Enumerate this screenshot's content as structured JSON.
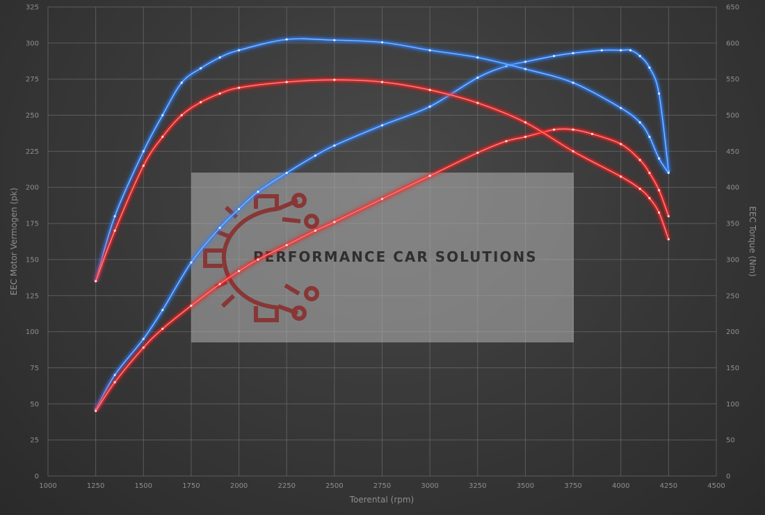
{
  "chart_data": {
    "type": "line",
    "xlabel": "Toerental (rpm)",
    "ylabel_left": "EEC Motor Vermogen (pk)",
    "ylabel_right": "EEC Torque (Nm)",
    "xlim": [
      1000,
      4500
    ],
    "ylim_left": [
      0,
      325
    ],
    "ylim_right": [
      0,
      650
    ],
    "x_ticks": [
      1000,
      1250,
      1500,
      1750,
      2000,
      2250,
      2500,
      2750,
      3000,
      3250,
      3500,
      3750,
      4000,
      4250,
      4500
    ],
    "y_left_ticks": [
      0,
      25,
      50,
      75,
      100,
      125,
      150,
      175,
      200,
      225,
      250,
      275,
      300,
      325
    ],
    "y_right_ticks": [
      0,
      50,
      100,
      150,
      200,
      250,
      300,
      350,
      400,
      450,
      500,
      550,
      600,
      650
    ],
    "grid": true,
    "series": [
      {
        "axis": "left",
        "color": "#3d8fff",
        "glow": "#2f7dff",
        "x": [
          1250,
          1350,
          1500,
          1600,
          1750,
          1900,
          2000,
          2100,
          2250,
          2400,
          2500,
          2750,
          3000,
          3250,
          3400,
          3500,
          3650,
          3750,
          3900,
          4000,
          4050,
          4100,
          4150,
          4200,
          4250
        ],
        "values": [
          46,
          70,
          95,
          115,
          148,
          172,
          185,
          197,
          210,
          222,
          229,
          243,
          256,
          276,
          284,
          287,
          291,
          293,
          295,
          295,
          295,
          291,
          283,
          265,
          211
        ]
      },
      {
        "axis": "left",
        "color": "#ff3b3b",
        "glow": "#ff1a1a",
        "x": [
          1250,
          1350,
          1500,
          1600,
          1750,
          1900,
          2000,
          2100,
          2250,
          2400,
          2500,
          2750,
          3000,
          3250,
          3400,
          3500,
          3650,
          3750,
          3850,
          4000,
          4100,
          4150,
          4200,
          4250
        ],
        "values": [
          45,
          65,
          89,
          102,
          118,
          133,
          142,
          150,
          160,
          170,
          176,
          192,
          208,
          224,
          232,
          235,
          240,
          240,
          237,
          230,
          219,
          210,
          198,
          180
        ]
      },
      {
        "axis": "right",
        "color": "#3d8fff",
        "glow": "#2f7dff",
        "x": [
          1250,
          1350,
          1500,
          1600,
          1700,
          1800,
          1900,
          2000,
          2250,
          2500,
          2750,
          3000,
          3250,
          3500,
          3750,
          4000,
          4100,
          4150,
          4200,
          4250
        ],
        "values": [
          270,
          360,
          450,
          500,
          545,
          565,
          580,
          590,
          605,
          604,
          601,
          590,
          580,
          564,
          545,
          510,
          490,
          470,
          440,
          420
        ]
      },
      {
        "axis": "right",
        "color": "#ff3b3b",
        "glow": "#ff1a1a",
        "x": [
          1250,
          1350,
          1500,
          1600,
          1700,
          1800,
          1900,
          2000,
          2250,
          2500,
          2750,
          3000,
          3250,
          3500,
          3750,
          4000,
          4100,
          4150,
          4200,
          4250
        ],
        "values": [
          270,
          340,
          430,
          470,
          500,
          518,
          530,
          538,
          546,
          549,
          546,
          535,
          517,
          490,
          450,
          415,
          398,
          385,
          365,
          328
        ]
      }
    ]
  },
  "watermark": {
    "text": "PERFORMANCE CAR SOLUTIONS",
    "icon": "gear-circuit-logo-icon"
  }
}
